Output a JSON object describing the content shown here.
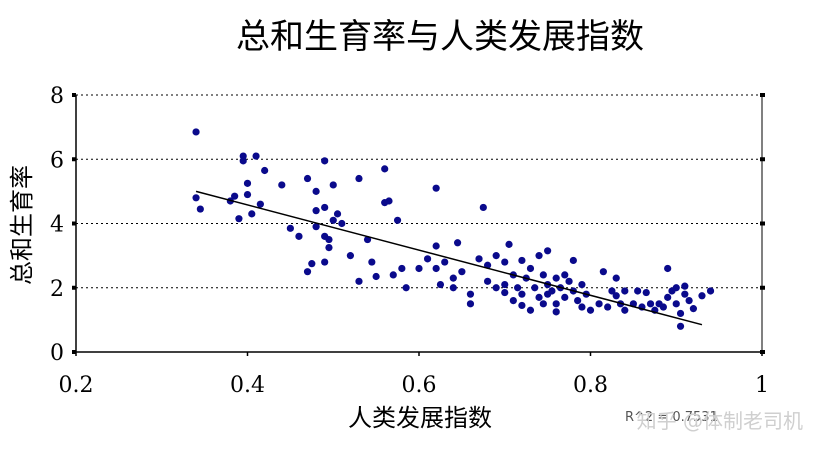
{
  "chart_data": {
    "type": "scatter",
    "title": "总和生育率与人类发展指数",
    "xlabel": "人类发展指数",
    "ylabel": "总和生育率",
    "xlim": [
      0.2,
      1.0
    ],
    "ylim": [
      0,
      8
    ],
    "x_ticks": [
      "0.2",
      "0.4",
      "0.6",
      "0.8",
      "1"
    ],
    "y_ticks": [
      "0",
      "2",
      "4",
      "6",
      "8"
    ],
    "grid": "horizontal dotted",
    "marker_color": "#0a0a8c",
    "trendline": {
      "type": "linear",
      "x": [
        0.34,
        0.93
      ],
      "y": [
        5.0,
        0.85
      ]
    },
    "r2_label": "R^2 = 0.7531",
    "points": [
      [
        0.34,
        6.85
      ],
      [
        0.34,
        4.8
      ],
      [
        0.345,
        4.45
      ],
      [
        0.38,
        4.7
      ],
      [
        0.385,
        4.85
      ],
      [
        0.39,
        4.15
      ],
      [
        0.395,
        6.1
      ],
      [
        0.395,
        5.95
      ],
      [
        0.4,
        5.25
      ],
      [
        0.4,
        4.9
      ],
      [
        0.405,
        4.3
      ],
      [
        0.41,
        6.1
      ],
      [
        0.415,
        4.6
      ],
      [
        0.42,
        5.65
      ],
      [
        0.44,
        5.2
      ],
      [
        0.45,
        3.85
      ],
      [
        0.46,
        3.6
      ],
      [
        0.47,
        5.4
      ],
      [
        0.47,
        2.5
      ],
      [
        0.475,
        2.75
      ],
      [
        0.48,
        5.0
      ],
      [
        0.48,
        4.4
      ],
      [
        0.48,
        3.9
      ],
      [
        0.49,
        5.95
      ],
      [
        0.49,
        4.5
      ],
      [
        0.49,
        3.6
      ],
      [
        0.49,
        2.8
      ],
      [
        0.495,
        3.5
      ],
      [
        0.495,
        3.25
      ],
      [
        0.5,
        5.2
      ],
      [
        0.5,
        4.1
      ],
      [
        0.505,
        4.3
      ],
      [
        0.51,
        4.0
      ],
      [
        0.52,
        3.0
      ],
      [
        0.53,
        5.4
      ],
      [
        0.53,
        2.2
      ],
      [
        0.54,
        3.5
      ],
      [
        0.545,
        2.8
      ],
      [
        0.55,
        2.35
      ],
      [
        0.56,
        5.7
      ],
      [
        0.56,
        4.65
      ],
      [
        0.565,
        4.7
      ],
      [
        0.57,
        2.4
      ],
      [
        0.575,
        4.1
      ],
      [
        0.58,
        2.6
      ],
      [
        0.585,
        2.0
      ],
      [
        0.6,
        2.6
      ],
      [
        0.61,
        2.9
      ],
      [
        0.62,
        5.1
      ],
      [
        0.62,
        3.3
      ],
      [
        0.62,
        2.6
      ],
      [
        0.625,
        2.1
      ],
      [
        0.63,
        2.8
      ],
      [
        0.64,
        2.3
      ],
      [
        0.64,
        2.0
      ],
      [
        0.645,
        3.4
      ],
      [
        0.65,
        2.5
      ],
      [
        0.66,
        1.8
      ],
      [
        0.66,
        1.5
      ],
      [
        0.67,
        2.9
      ],
      [
        0.675,
        4.5
      ],
      [
        0.68,
        2.7
      ],
      [
        0.68,
        2.2
      ],
      [
        0.69,
        3.0
      ],
      [
        0.69,
        2.0
      ],
      [
        0.7,
        2.8
      ],
      [
        0.7,
        2.1
      ],
      [
        0.7,
        1.85
      ],
      [
        0.705,
        3.35
      ],
      [
        0.71,
        2.4
      ],
      [
        0.71,
        1.6
      ],
      [
        0.715,
        2.0
      ],
      [
        0.72,
        2.85
      ],
      [
        0.72,
        1.8
      ],
      [
        0.72,
        1.45
      ],
      [
        0.725,
        2.3
      ],
      [
        0.73,
        2.6
      ],
      [
        0.73,
        1.3
      ],
      [
        0.735,
        2.0
      ],
      [
        0.74,
        3.0
      ],
      [
        0.74,
        1.7
      ],
      [
        0.745,
        2.4
      ],
      [
        0.745,
        1.5
      ],
      [
        0.75,
        3.15
      ],
      [
        0.75,
        2.1
      ],
      [
        0.75,
        1.8
      ],
      [
        0.755,
        1.9
      ],
      [
        0.76,
        2.3
      ],
      [
        0.76,
        1.5
      ],
      [
        0.76,
        1.25
      ],
      [
        0.765,
        2.0
      ],
      [
        0.77,
        2.4
      ],
      [
        0.77,
        1.7
      ],
      [
        0.775,
        2.2
      ],
      [
        0.78,
        2.85
      ],
      [
        0.78,
        1.9
      ],
      [
        0.785,
        1.6
      ],
      [
        0.79,
        2.1
      ],
      [
        0.79,
        1.4
      ],
      [
        0.795,
        1.8
      ],
      [
        0.8,
        1.3
      ],
      [
        0.81,
        1.5
      ],
      [
        0.815,
        2.5
      ],
      [
        0.82,
        1.4
      ],
      [
        0.825,
        1.9
      ],
      [
        0.83,
        1.75
      ],
      [
        0.83,
        2.3
      ],
      [
        0.835,
        1.5
      ],
      [
        0.84,
        1.9
      ],
      [
        0.84,
        1.3
      ],
      [
        0.85,
        1.5
      ],
      [
        0.855,
        1.9
      ],
      [
        0.86,
        1.4
      ],
      [
        0.865,
        1.85
      ],
      [
        0.87,
        1.5
      ],
      [
        0.875,
        1.3
      ],
      [
        0.88,
        1.5
      ],
      [
        0.885,
        1.4
      ],
      [
        0.89,
        1.7
      ],
      [
        0.89,
        2.6
      ],
      [
        0.895,
        1.9
      ],
      [
        0.9,
        2.0
      ],
      [
        0.9,
        1.5
      ],
      [
        0.905,
        0.8
      ],
      [
        0.905,
        1.2
      ],
      [
        0.91,
        1.8
      ],
      [
        0.91,
        2.05
      ],
      [
        0.915,
        1.6
      ],
      [
        0.92,
        1.35
      ],
      [
        0.93,
        1.75
      ],
      [
        0.94,
        1.9
      ]
    ]
  },
  "watermark": "知乎 @体制老司机"
}
